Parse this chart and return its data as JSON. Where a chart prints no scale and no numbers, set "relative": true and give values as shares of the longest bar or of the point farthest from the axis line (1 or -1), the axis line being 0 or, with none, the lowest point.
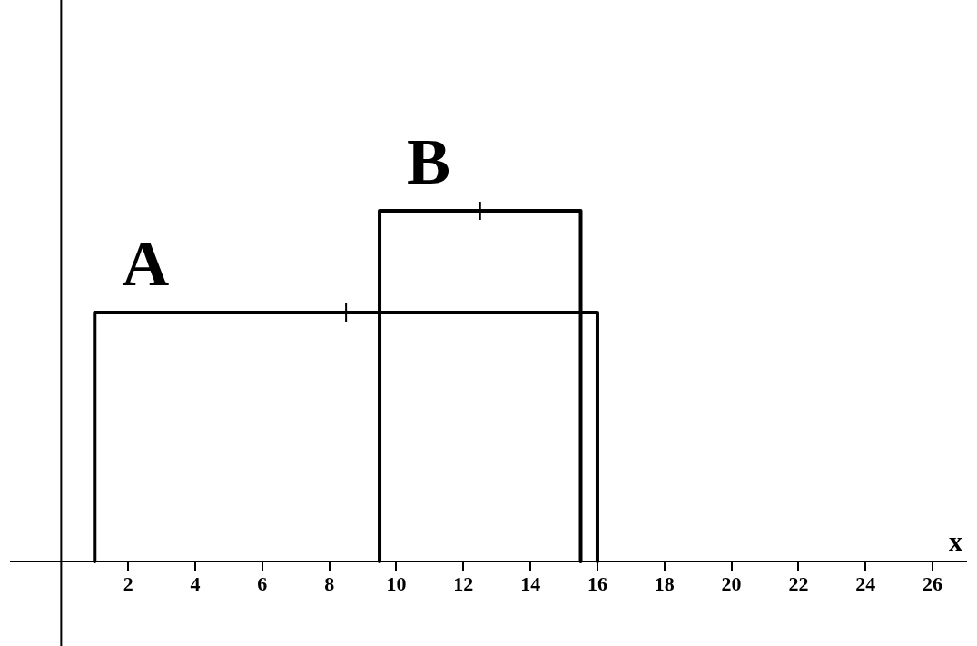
{
  "chart_data": {
    "type": "line",
    "xlabel": "x",
    "relative": true,
    "tick_labels": "x",
    "xlim": [
      -1.5,
      27
    ],
    "xticks": [
      2,
      4,
      6,
      8,
      10,
      12,
      14,
      16,
      18,
      20,
      22,
      24,
      26
    ],
    "series": [
      {
        "name": "A",
        "type": "line",
        "color": "#000000",
        "x": [
          1,
          1,
          16,
          16
        ],
        "values": [
          0,
          0.71,
          0.71,
          0
        ]
      },
      {
        "name": "B",
        "type": "line",
        "color": "#000000",
        "x": [
          9.5,
          9.5,
          15.5,
          15.5
        ],
        "values": [
          0,
          1,
          1,
          0
        ]
      },
      {
        "type": "scatter",
        "marker": "cross",
        "color": "#000000",
        "x": [
          8.5,
          12.5
        ],
        "values": [
          0.71,
          1
        ]
      }
    ],
    "ref_lines": [
      {
        "axis": "x",
        "value": 0
      }
    ]
  }
}
